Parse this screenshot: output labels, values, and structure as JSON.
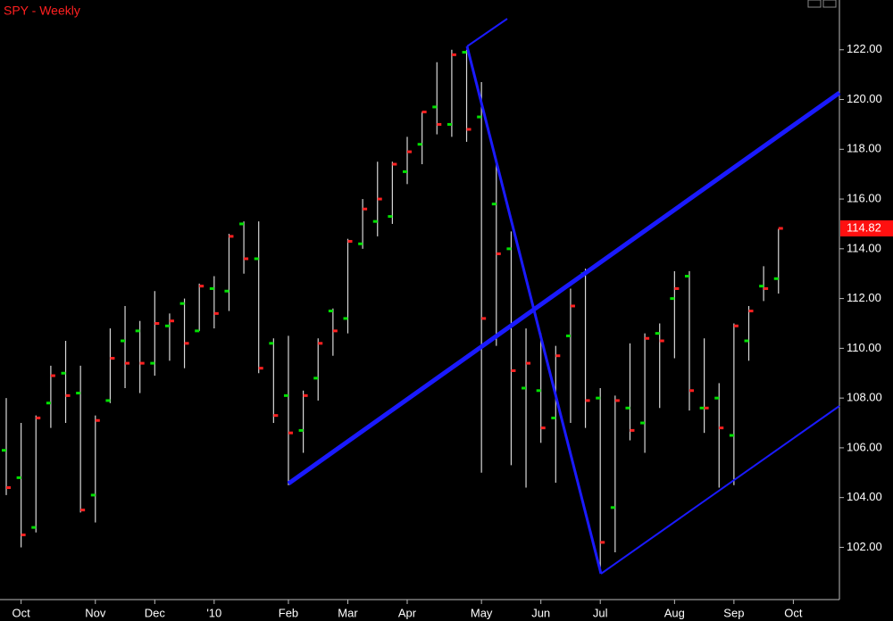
{
  "chart_data": {
    "type": "ohlc",
    "title": "SPY - Weekly",
    "categories": [
      null,
      "Oct",
      null,
      null,
      null,
      null,
      "Nov",
      null,
      null,
      null,
      "Dec",
      null,
      null,
      null,
      "'10",
      null,
      null,
      null,
      null,
      "Feb",
      null,
      null,
      null,
      "Mar",
      null,
      null,
      null,
      "Apr",
      null,
      null,
      null,
      null,
      "May",
      null,
      null,
      null,
      "Jun",
      null,
      null,
      null,
      "Jul",
      null,
      null,
      null,
      null,
      "Aug",
      null,
      null,
      null,
      "Sep",
      null,
      null,
      null,
      "Oct"
    ],
    "open": [
      105.9,
      104.8,
      102.8,
      107.8,
      109.0,
      108.2,
      104.1,
      107.9,
      110.3,
      110.7,
      109.4,
      110.9,
      111.8,
      110.7,
      112.4,
      112.3,
      115.0,
      113.6,
      110.2,
      108.1,
      106.7,
      108.8,
      111.5,
      111.2,
      114.2,
      115.1,
      115.3,
      117.1,
      118.2,
      119.7,
      119.0,
      121.9,
      119.3,
      115.8,
      114.0,
      108.4,
      108.3,
      107.2,
      110.5,
      113.0,
      108.0,
      103.6,
      107.6,
      107.0,
      110.6,
      112.0,
      112.9,
      107.6,
      108.0,
      106.5,
      110.3,
      112.5,
      112.8,
      null
    ],
    "high": [
      108.0,
      107.0,
      107.3,
      109.3,
      110.3,
      109.3,
      107.3,
      110.8,
      111.7,
      111.1,
      112.3,
      111.4,
      112.0,
      112.6,
      112.9,
      114.6,
      115.1,
      115.1,
      110.4,
      110.5,
      108.3,
      110.4,
      111.6,
      114.4,
      116.0,
      117.5,
      117.5,
      118.5,
      119.5,
      121.5,
      122.0,
      122.0,
      120.7,
      117.6,
      114.7,
      110.8,
      110.6,
      110.1,
      112.4,
      113.2,
      108.4,
      108.1,
      110.2,
      110.6,
      111.0,
      113.1,
      113.1,
      110.4,
      108.6,
      111.0,
      111.7,
      113.3,
      114.8,
      null
    ],
    "low": [
      104.1,
      102.0,
      102.6,
      106.8,
      107.0,
      103.4,
      103.0,
      107.8,
      108.4,
      108.2,
      108.9,
      109.5,
      109.2,
      110.7,
      110.8,
      111.5,
      113.0,
      109.0,
      107.0,
      104.5,
      105.8,
      107.9,
      109.7,
      110.6,
      114.0,
      114.5,
      115.0,
      116.6,
      117.4,
      118.6,
      118.5,
      118.3,
      105.0,
      110.1,
      105.3,
      104.4,
      106.2,
      104.6,
      107.0,
      106.8,
      101.2,
      101.8,
      106.3,
      105.8,
      107.6,
      109.6,
      107.5,
      106.6,
      104.4,
      104.5,
      109.5,
      111.9,
      112.2,
      null
    ],
    "close": [
      104.4,
      102.5,
      107.2,
      108.9,
      108.1,
      103.5,
      107.1,
      109.6,
      109.4,
      109.4,
      111.0,
      111.1,
      110.2,
      112.5,
      111.4,
      114.5,
      113.6,
      109.2,
      107.3,
      106.6,
      108.1,
      110.2,
      110.7,
      114.3,
      115.6,
      116.0,
      117.4,
      117.9,
      119.5,
      119.0,
      121.8,
      118.8,
      111.2,
      113.8,
      109.1,
      109.4,
      106.8,
      109.7,
      111.7,
      107.9,
      102.2,
      107.9,
      106.7,
      110.4,
      110.3,
      112.4,
      108.3,
      107.6,
      106.8,
      110.9,
      111.5,
      112.4,
      114.82,
      null
    ],
    "bar_color": "#d8d8d8",
    "open_color": "#00e000",
    "close_color": "#ff2020",
    "ylim": [
      99.9,
      124.0
    ],
    "yticks": [
      {
        "value": 102,
        "label": "102.00"
      },
      {
        "value": 104,
        "label": "104.00"
      },
      {
        "value": 106,
        "label": "106.00"
      },
      {
        "value": 108,
        "label": "108.00"
      },
      {
        "value": 110,
        "label": "110.00"
      },
      {
        "value": 112,
        "label": "112.00"
      },
      {
        "value": 114,
        "label": "114.00"
      },
      {
        "value": 116,
        "label": "116.00"
      },
      {
        "value": 118,
        "label": "118.00"
      },
      {
        "value": 120,
        "label": "120.00"
      },
      {
        "value": 122,
        "label": "122.00"
      }
    ]
  }
}
